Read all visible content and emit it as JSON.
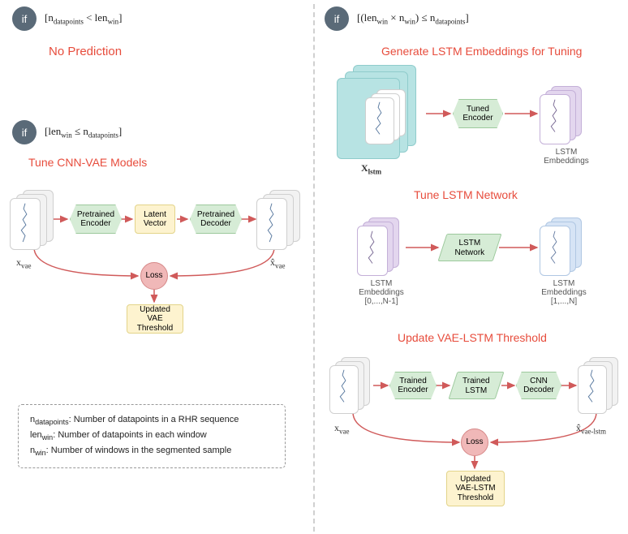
{
  "colors": {
    "if_badge_bg": "#5a6a78",
    "red": "#e74c3c",
    "arrow": "#d05a5a",
    "green_fill": "#d6ecd6",
    "green_border": "#9cc99c",
    "yellow_fill": "#fdf3cf",
    "yellow_border": "#e3d48a",
    "loss_fill": "#f0b8b8",
    "loss_border": "#d68888",
    "grey_fill": "#f2f2f2",
    "grey_border": "#cfcfcf",
    "teal_fill": "#b7e3e3",
    "teal_border": "#8fcccc",
    "lav_fill": "#e3d6ee",
    "lav_border": "#c4b0d8",
    "blue_fill": "#d6e4f5",
    "blue_border": "#b0c7e3"
  },
  "left": {
    "cond1": "[n<sub>datapoints</sub> &lt; len<sub>win</sub>]",
    "no_pred": "No Prediction",
    "cond2": "[len<sub>win</sub> ≤ n<sub>datapoints</sub>]",
    "heading": "Tune CNN-VAE Models",
    "enc": "Pretrained Encoder",
    "latent": "Latent Vector",
    "dec": "Pretrained Decoder",
    "loss": "Loss",
    "thresh": "Updated VAE Threshold",
    "x_in": "x<sub>vae</sub>",
    "x_out": "x̂<sub>vae</sub>"
  },
  "right": {
    "cond": "[(len<sub>win</sub> × n<sub>win</sub>) ≤ n<sub>datapoints</sub>]",
    "h1": "Generate LSTM Embeddings for Tuning",
    "h2": "Tune LSTM Network",
    "h3": "Update VAE-LSTM Threshold",
    "tuned_enc": "Tuned Encoder",
    "lstm_emb": "LSTM Embeddings",
    "x_lstm": "X<sub>lstm</sub>",
    "lstm_net": "LSTM Network",
    "emb_a": "LSTM Embeddings",
    "emb_a_sub": "[0,...,N-1]",
    "emb_b": "LSTM Embeddings",
    "emb_b_sub": "[1,...,N]",
    "trained_enc": "Trained Encoder",
    "trained_lstm": "Trained LSTM",
    "cnn_dec": "CNN Decoder",
    "loss": "Loss",
    "thresh": "Updated VAE-LSTM Threshold",
    "x_in": "x<sub>vae</sub>",
    "x_out": "x̂<sub>vae-lstm</sub>"
  },
  "legend": {
    "l1": "n<sub>datapoints</sub>: Number of datapoints in a RHR sequence",
    "l2": "len<sub>win</sub>: Number of datapoints in each window",
    "l3": "n<sub>win</sub>: Number of windows in the segmented sample"
  },
  "if_label": "if"
}
